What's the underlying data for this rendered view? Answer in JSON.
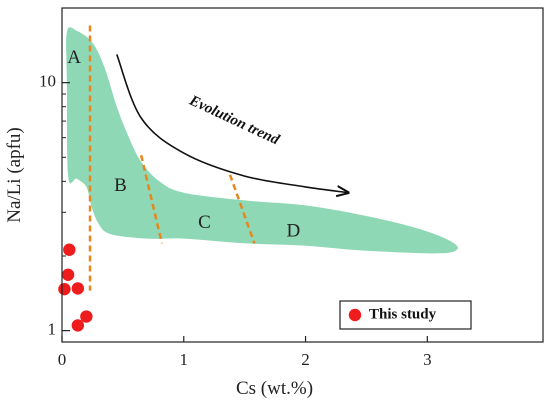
{
  "chart_data": {
    "type": "scatter",
    "title": "",
    "xlabel": "Cs (wt.%)",
    "ylabel": "Na/Li (apfu)",
    "xlim": [
      0,
      3.95
    ],
    "ylim": [
      0.9,
      20
    ],
    "yscale": "log",
    "x_ticks": [
      {
        "value": 0,
        "label": "0"
      },
      {
        "value": 1,
        "label": "1"
      },
      {
        "value": 2,
        "label": "2"
      },
      {
        "value": 3,
        "label": "3"
      }
    ],
    "y_ticks": [
      {
        "value": 1,
        "label": "1"
      },
      {
        "value": 10,
        "label": "10"
      }
    ],
    "field": {
      "color": "#8fd8b5",
      "boundary": [
        [
          0.04,
          16.0
        ],
        [
          0.12,
          16.2
        ],
        [
          0.25,
          14.5
        ],
        [
          0.35,
          11.5
        ],
        [
          0.45,
          8.0
        ],
        [
          0.55,
          6.0
        ],
        [
          0.65,
          4.8
        ],
        [
          0.8,
          4.0
        ],
        [
          1.0,
          3.6
        ],
        [
          1.5,
          3.35
        ],
        [
          2.0,
          3.2
        ],
        [
          2.5,
          2.9
        ],
        [
          2.9,
          2.6
        ],
        [
          3.15,
          2.35
        ],
        [
          3.25,
          2.15
        ],
        [
          3.1,
          2.05
        ],
        [
          2.5,
          2.1
        ],
        [
          2.0,
          2.2
        ],
        [
          1.5,
          2.25
        ],
        [
          1.0,
          2.35
        ],
        [
          0.7,
          2.35
        ],
        [
          0.4,
          2.45
        ],
        [
          0.3,
          2.7
        ],
        [
          0.24,
          3.2
        ],
        [
          0.2,
          3.8
        ],
        [
          0.12,
          4.1
        ],
        [
          0.05,
          4.2
        ],
        [
          0.04,
          10.0
        ]
      ]
    },
    "zones": [
      {
        "label": "A",
        "x": 0.1,
        "y": 12.5
      },
      {
        "label": "B",
        "x": 0.48,
        "y": 3.8
      },
      {
        "label": "C",
        "x": 1.17,
        "y": 2.7
      },
      {
        "label": "D",
        "x": 1.9,
        "y": 2.5
      }
    ],
    "dividers": [
      {
        "color": "#e8851c",
        "points": [
          [
            0.23,
            17.0
          ],
          [
            0.23,
            1.45
          ]
        ]
      },
      {
        "color": "#e8851c",
        "points": [
          [
            0.65,
            5.1
          ],
          [
            0.82,
            2.25
          ]
        ]
      },
      {
        "color": "#e8851c",
        "points": [
          [
            1.38,
            4.25
          ],
          [
            1.58,
            2.25
          ]
        ]
      }
    ],
    "trend": {
      "label": "Evolution trend",
      "points": [
        [
          0.45,
          13.0
        ],
        [
          0.65,
          7.2
        ],
        [
          1.0,
          5.2
        ],
        [
          1.5,
          4.2
        ],
        [
          2.0,
          3.8
        ],
        [
          2.35,
          3.6
        ]
      ]
    },
    "series": [
      {
        "name": "This study",
        "color": "#ee1c1c",
        "points": [
          [
            0.06,
            2.12
          ],
          [
            0.05,
            1.68
          ],
          [
            0.02,
            1.47
          ],
          [
            0.13,
            1.48
          ],
          [
            0.2,
            1.14
          ],
          [
            0.13,
            1.05
          ]
        ]
      }
    ]
  }
}
